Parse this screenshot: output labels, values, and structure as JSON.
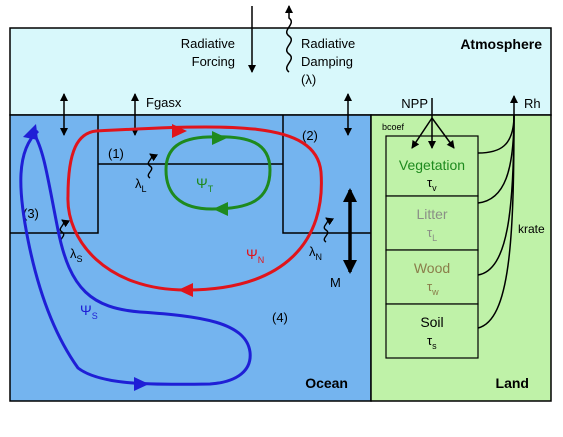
{
  "atmosphere": {
    "label": "Atmosphere"
  },
  "ocean": {
    "label": "Ocean"
  },
  "land": {
    "label": "Land"
  },
  "fluxes": {
    "radiative_forcing_line1": "Radiative",
    "radiative_forcing_line2": "Forcing",
    "radiative_damping_line1": "Radiative",
    "radiative_damping_line2": "Damping",
    "radiative_damping_line3": "(λ)",
    "fgasx": "Fgasx",
    "npp": "NPP",
    "rh": "Rh",
    "bcoef": "bcoef",
    "krate": "krate",
    "mixing": "M"
  },
  "ocean_boxes": {
    "box1": "(1)",
    "box2": "(2)",
    "box3": "(3)",
    "box4": "(4)"
  },
  "circulations": {
    "psi_t": {
      "symbol": "Ψ",
      "sub": "T",
      "color": "#1e8a1e"
    },
    "psi_n": {
      "symbol": "Ψ",
      "sub": "N",
      "color": "#e0141b"
    },
    "psi_s": {
      "symbol": "Ψ",
      "sub": "S",
      "color": "#1f1fd6"
    }
  },
  "damping": {
    "lambda_l": {
      "symbol": "λ",
      "sub": "L"
    },
    "lambda_s": {
      "symbol": "λ",
      "sub": "S"
    },
    "lambda_n": {
      "symbol": "λ",
      "sub": "N"
    }
  },
  "land_pools": [
    {
      "name": "Vegetation",
      "tau": "τ",
      "sub": "v",
      "color": "#1e8a1e"
    },
    {
      "name": "Litter",
      "tau": "τ",
      "sub": "L",
      "color": "#8a8f86"
    },
    {
      "name": "Wood",
      "tau": "τ",
      "sub": "w",
      "color": "#8a7d4a"
    },
    {
      "name": "Soil",
      "tau": "τ",
      "sub": "s",
      "color": "#000000"
    }
  ],
  "colors": {
    "atmosphere_fill": "#d8f8fb",
    "ocean_fill": "#74b4ef",
    "land_fill": "#bff2a8"
  }
}
